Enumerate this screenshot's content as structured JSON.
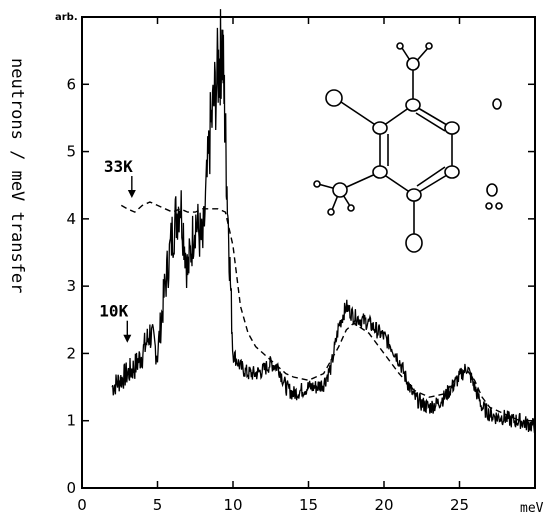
{
  "chart_data": {
    "type": "line",
    "title": "",
    "xlabel": "",
    "ylabel": "neutrons / meV transfer",
    "x_unit": "meV",
    "y_unit": "arb.",
    "xlim": [
      0,
      30
    ],
    "ylim": [
      0,
      7
    ],
    "x_ticks": [
      0,
      5,
      10,
      15,
      20,
      25
    ],
    "y_ticks": [
      0,
      1,
      2,
      3,
      4,
      5,
      6
    ],
    "grid": false,
    "legend": "none",
    "annotations": [
      {
        "text": "33K",
        "x": 3.3,
        "y": 4.25
      },
      {
        "text": "10K",
        "x": 3.0,
        "y": 2.1
      }
    ],
    "series": [
      {
        "name": "10K",
        "style": "solid",
        "x": [
          2.0,
          2.5,
          3.0,
          3.5,
          4.0,
          4.5,
          5.0,
          5.5,
          6.0,
          6.5,
          7.0,
          7.5,
          8.0,
          8.5,
          9.0,
          9.3,
          9.6,
          10.0,
          10.5,
          11.0,
          11.5,
          12.0,
          12.5,
          13.0,
          13.5,
          14.0,
          14.5,
          15.0,
          15.5,
          16.0,
          16.5,
          17.0,
          17.5,
          18.0,
          18.5,
          19.0,
          19.5,
          20.0,
          20.5,
          21.0,
          21.5,
          22.0,
          22.5,
          23.0,
          23.5,
          24.0,
          24.5,
          25.0,
          25.5,
          26.0,
          26.5,
          27.0,
          27.5,
          28.0,
          28.5,
          29.0,
          29.5,
          30.0
        ],
        "y": [
          1.5,
          1.6,
          1.7,
          1.8,
          2.0,
          2.3,
          2.0,
          3.0,
          3.8,
          4.3,
          3.2,
          4.0,
          3.6,
          5.3,
          6.2,
          6.6,
          4.5,
          2.0,
          1.8,
          1.7,
          1.7,
          1.75,
          1.85,
          1.8,
          1.5,
          1.4,
          1.45,
          1.5,
          1.5,
          1.55,
          1.8,
          2.4,
          2.7,
          2.55,
          2.5,
          2.45,
          2.35,
          2.25,
          2.1,
          1.9,
          1.6,
          1.35,
          1.25,
          1.2,
          1.25,
          1.35,
          1.5,
          1.65,
          1.8,
          1.5,
          1.2,
          1.1,
          1.05,
          1.05,
          1.0,
          1.0,
          0.95,
          0.92
        ]
      },
      {
        "name": "33K",
        "style": "dashed",
        "x": [
          2.6,
          3.0,
          3.5,
          4.0,
          4.5,
          5.0,
          5.5,
          6.0,
          6.5,
          7.0,
          7.5,
          8.0,
          8.5,
          9.0,
          9.5,
          10.0,
          10.5,
          11.0,
          11.5,
          12.0,
          12.5,
          13.0,
          13.5,
          14.0,
          15.0,
          16.0,
          17.0,
          17.5,
          18.0,
          19.0,
          20.0,
          21.0,
          22.0,
          23.0,
          24.0,
          25.0,
          25.5,
          26.0,
          26.5,
          27.0,
          28.0,
          29.0,
          30.0
        ],
        "y": [
          4.2,
          4.15,
          4.1,
          4.2,
          4.25,
          4.2,
          4.15,
          4.1,
          4.15,
          4.1,
          4.1,
          4.15,
          4.15,
          4.15,
          4.1,
          3.6,
          2.7,
          2.3,
          2.1,
          2.0,
          1.9,
          1.8,
          1.7,
          1.65,
          1.6,
          1.7,
          2.1,
          2.35,
          2.45,
          2.3,
          2.0,
          1.7,
          1.45,
          1.35,
          1.4,
          1.7,
          1.75,
          1.6,
          1.35,
          1.2,
          1.1,
          1.0,
          0.95
        ]
      }
    ]
  }
}
